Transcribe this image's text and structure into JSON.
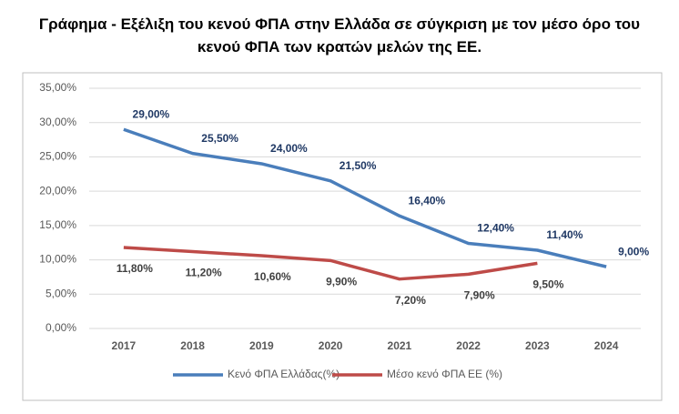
{
  "chart_data": {
    "type": "line",
    "title": "Γράφημα - Εξέλιξη του κενού ΦΠΑ στην Ελλάδα σε σύγκριση με τον μέσο όρο του κενού ΦΠΑ των κρατών μελών της ΕΕ.",
    "categories": [
      "2017",
      "2018",
      "2019",
      "2020",
      "2021",
      "2022",
      "2023",
      "2024"
    ],
    "series": [
      {
        "name": "Κενό ΦΠΑ Ελλάδας(%)",
        "color": "#4a7ebb",
        "values": [
          29.0,
          25.5,
          24.0,
          21.5,
          16.4,
          12.4,
          11.4,
          9.0
        ],
        "value_labels": [
          "29,00%",
          "25,50%",
          "24,00%",
          "21,50%",
          "16,40%",
          "12,40%",
          "11,40%",
          "9,00%"
        ]
      },
      {
        "name": "Μέσο κενό ΦΠΑ ΕΕ (%)",
        "color": "#be4b48",
        "values": [
          11.8,
          11.2,
          10.6,
          9.9,
          7.2,
          7.9,
          9.5,
          null
        ],
        "value_labels": [
          "11,80%",
          "11,20%",
          "10,60%",
          "9,90%",
          "7,20%",
          "7,90%",
          "9,50%",
          null
        ]
      }
    ],
    "ylim": [
      0,
      35
    ],
    "yticks": [
      {
        "value": 0,
        "label": "0,00%"
      },
      {
        "value": 5,
        "label": "5,00%"
      },
      {
        "value": 10,
        "label": "10,00%"
      },
      {
        "value": 15,
        "label": "15,00%"
      },
      {
        "value": 20,
        "label": "20,00%"
      },
      {
        "value": 25,
        "label": "25,00%"
      },
      {
        "value": 30,
        "label": "30,00%"
      },
      {
        "value": 35,
        "label": "35,00%"
      }
    ],
    "grid": true,
    "legend": "bottom"
  }
}
